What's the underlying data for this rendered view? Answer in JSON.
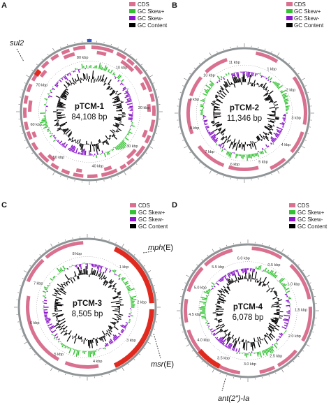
{
  "colors": {
    "cds": "#d9708f",
    "gc_skew_plus": "#33c233",
    "gc_skew_minus": "#8a17c9",
    "gc_content": "#000000",
    "backbone": "#8f9496",
    "resistance_gene": "#e02a1f",
    "blue_feature": "#2b54d6"
  },
  "legend": {
    "cds": "CDS",
    "gc_skew_plus": "GC Skew+",
    "gc_skew_minus": "GC Skew-",
    "gc_content": "GC Content"
  },
  "panels": [
    {
      "letter": "A",
      "name": "pTCM-1",
      "size": "84,108 bp",
      "ticks": [
        "80 kbp",
        "10 kbp",
        "20 kbp",
        "30 kbp",
        "40 kbp",
        "50 kbp",
        "60 kbp",
        "70 kbp"
      ],
      "genes": [
        {
          "label": "sul2",
          "italic": true,
          "suffix": ""
        }
      ]
    },
    {
      "letter": "B",
      "name": "pTCM-2",
      "size": "11,346 bp",
      "ticks": [
        "11 kbp",
        "1 kbp",
        "2 kbp",
        "3 kbp",
        "4 kbp",
        "5 kbp",
        "6 kbp",
        "7 kbp",
        "8 kbp",
        "9 kbp",
        "10 kbp"
      ],
      "genes": []
    },
    {
      "letter": "C",
      "name": "pTCM-3",
      "size": "8,505 bp",
      "ticks": [
        "8 kbp",
        "1 kbp",
        "2 kbp",
        "3 kbp",
        "4 kbp",
        "5 kbp",
        "6 kbp",
        "7 kbp"
      ],
      "genes": [
        {
          "label": "mph",
          "italic": true,
          "suffix": "(E)"
        },
        {
          "label": "msr",
          "italic": true,
          "suffix": "(E)"
        }
      ]
    },
    {
      "letter": "D",
      "name": "pTCM-4",
      "size": "6,078 bp",
      "ticks": [
        "6.0 kbp",
        "0.5 kbp",
        "1.0 kbp",
        "1.5 kbp",
        "2.0 kbp",
        "2.5 kbp",
        "3.0 kbp",
        "3.5 kbp",
        "4.0 kbp",
        "4.5 kbp",
        "5.0 kbp",
        "5.5 kbp"
      ],
      "genes": [
        {
          "label": "ant(2”)-Ia",
          "italic": true,
          "suffix": ""
        }
      ]
    }
  ]
}
